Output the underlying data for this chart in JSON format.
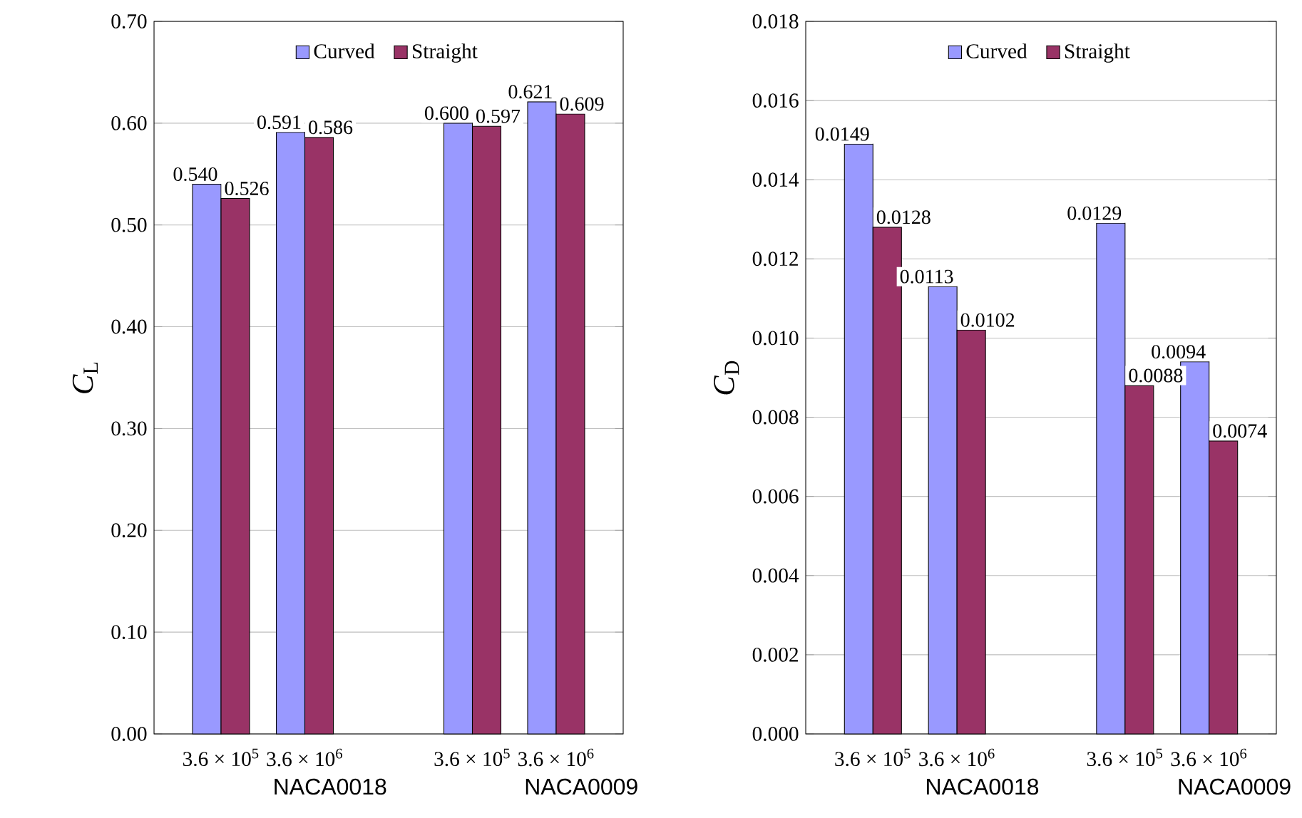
{
  "chart_data": [
    {
      "type": "bar",
      "ylabel": "*C*$_{L}$",
      "categories": [
        "3.6 × 10$^{5}$",
        "3.6 × 10$^{6}$",
        null,
        "3.6 × 10$^{5}$",
        "3.6 × 10$^{6}$"
      ],
      "series": [
        {
          "name": "Curved",
          "color": "#9999ff",
          "values": [
            0.54,
            0.591,
            null,
            0.6,
            0.621
          ],
          "value_labels": [
            "0.540",
            "0.591",
            null,
            "0.600",
            "0.621"
          ]
        },
        {
          "name": "Straight",
          "color": "#993366",
          "values": [
            0.526,
            0.586,
            null,
            0.597,
            0.609
          ],
          "value_labels": [
            "0.526",
            "0.586",
            null,
            "0.597",
            "0.609"
          ]
        }
      ],
      "ylim": [
        0,
        0.7
      ],
      "yticks": [
        {
          "value": 0,
          "label": "0.00"
        },
        {
          "value": 0.1,
          "label": "0.10"
        },
        {
          "value": 0.2,
          "label": "0.20"
        },
        {
          "value": 0.3,
          "label": "0.30"
        },
        {
          "value": 0.4,
          "label": "0.40"
        },
        {
          "value": 0.5,
          "label": "0.50"
        },
        {
          "value": 0.6,
          "label": "0.60"
        },
        {
          "value": 0.7,
          "label": "0.70"
        }
      ],
      "grid": "y",
      "legend": "top",
      "annotations": [
        "NACA0018",
        "NACA0009"
      ]
    },
    {
      "type": "bar",
      "ylabel": "*C*$_{D}$",
      "categories": [
        "3.6 × 10$^{5}$",
        "3.6 × 10$^{6}$",
        null,
        "3.6 × 10$^{5}$",
        "3.6 × 10$^{6}$"
      ],
      "series": [
        {
          "name": "Curved",
          "color": "#9999ff",
          "values": [
            0.0149,
            0.0113,
            null,
            0.0129,
            0.0094
          ],
          "value_labels": [
            "0.0149",
            "0.0113",
            null,
            "0.0129",
            "0.0094"
          ]
        },
        {
          "name": "Straight",
          "color": "#993366",
          "values": [
            0.0128,
            0.0102,
            null,
            0.0088,
            0.0074
          ],
          "value_labels": [
            "0.0128",
            "0.0102",
            null,
            "0.0088",
            "0.0074"
          ]
        }
      ],
      "ylim": [
        0,
        0.018
      ],
      "yticks": [
        {
          "value": 0,
          "label": "0.000"
        },
        {
          "value": 0.002,
          "label": "0.002"
        },
        {
          "value": 0.004,
          "label": "0.004"
        },
        {
          "value": 0.006,
          "label": "0.006"
        },
        {
          "value": 0.008,
          "label": "0.008"
        },
        {
          "value": 0.01,
          "label": "0.010"
        },
        {
          "value": 0.012,
          "label": "0.012"
        },
        {
          "value": 0.014,
          "label": "0.014"
        },
        {
          "value": 0.016,
          "label": "0.016"
        },
        {
          "value": 0.018,
          "label": "0.018"
        }
      ],
      "grid": "y",
      "legend": "top",
      "annotations": [
        "NACA0018",
        "NACA0009"
      ]
    }
  ]
}
